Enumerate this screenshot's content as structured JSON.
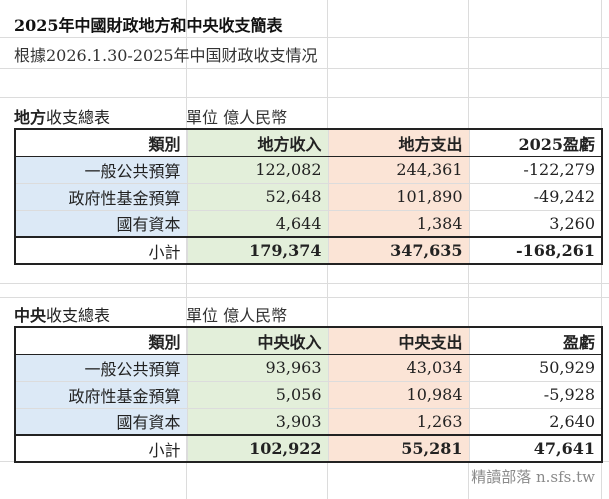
{
  "title": "2025年中國財政地方和中央收支簡表",
  "subtitle": "根據2026.1.30-2025年中国财政收支情况",
  "local": {
    "section_bold": "地方",
    "section_rest": "收支總表",
    "unit": "單位 億人民幣",
    "headers": [
      "類別",
      "地方收入",
      "地方支出",
      "2025盈虧"
    ],
    "rows": [
      [
        "一般公共預算",
        "122,082",
        "244,361",
        "-122,279"
      ],
      [
        "政府性基金預算",
        "52,648",
        "101,890",
        "-49,242"
      ],
      [
        "國有資本",
        "4,644",
        "1,384",
        "3,260"
      ]
    ],
    "total": [
      "小計",
      "179,374",
      "347,635",
      "-168,261"
    ]
  },
  "central": {
    "section_bold": "中央",
    "section_rest": "收支總表",
    "unit": "單位 億人民幣",
    "headers": [
      "類別",
      "中央收入",
      "中央支出",
      "盈虧"
    ],
    "rows": [
      [
        "一般公共預算",
        "93,963",
        "43,034",
        "50,929"
      ],
      [
        "政府性基金預算",
        "5,056",
        "10,984",
        "-5,928"
      ],
      [
        "國有資本",
        "3,903",
        "1,263",
        "2,640"
      ]
    ],
    "total": [
      "小計",
      "102,922",
      "55,281",
      "47,641"
    ]
  },
  "watermark": "精讀部落 n.sfs.tw",
  "colors": {
    "category_fill": "#dce9f6",
    "income_fill": "#e3efda",
    "expense_fill": "#fbe4d6"
  }
}
